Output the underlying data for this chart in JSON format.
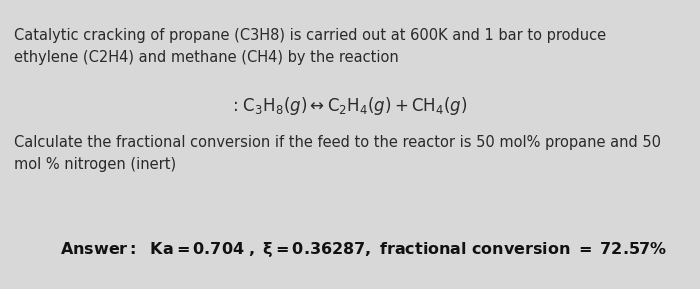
{
  "background_color": "#d8d8d8",
  "line1": "Catalytic cracking of propane (C3H8) is carried out at 600K and 1 bar to produce",
  "line2": "ethylene (C2H4) and methane (CH4) by the reaction",
  "calc_line1": "Calculate the fractional conversion if the feed to the reactor is 50 mol% propane and 50",
  "calc_line2": "mol % nitrogen (inert)",
  "body_fontsize": 10.5,
  "answer_fontsize": 11.5,
  "eq_fontsize": 12,
  "text_color": "#2a2a2a",
  "answer_color": "#111111"
}
